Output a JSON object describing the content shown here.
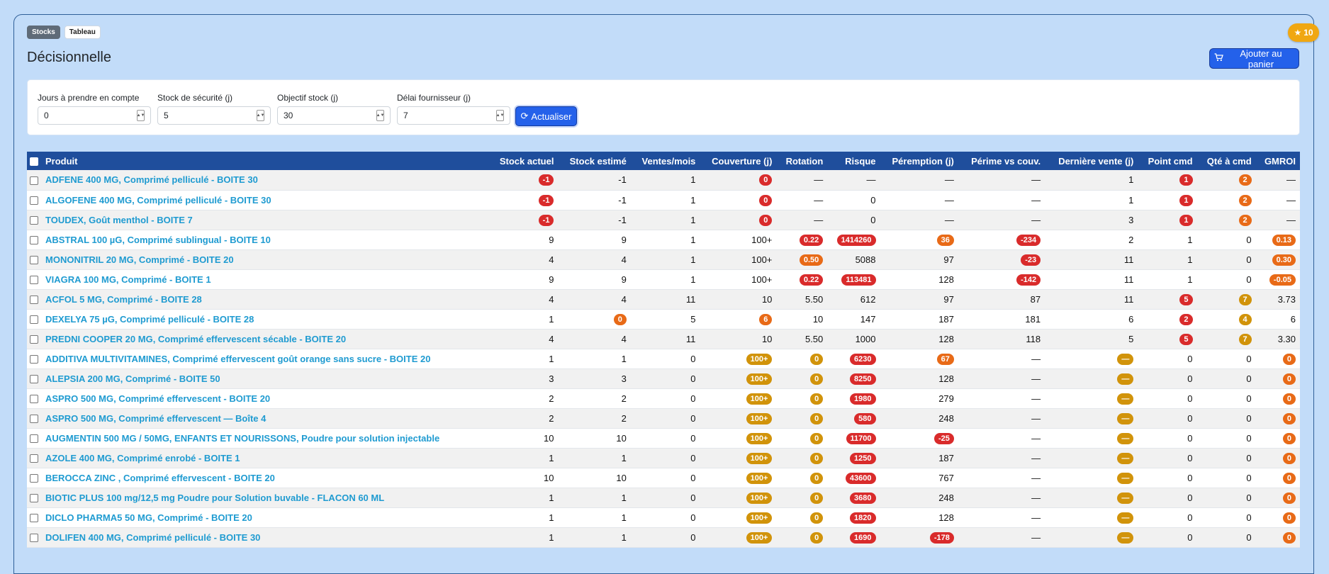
{
  "badge": {
    "icon": "star-icon",
    "count": "10"
  },
  "breadcrumbs": [
    "Stocks",
    "Tableau"
  ],
  "page": {
    "title": "Décisionnelle",
    "cart_button": "Ajouter au panier"
  },
  "filters": [
    {
      "label": "Jours à prendre en compte",
      "value": "0"
    },
    {
      "label": "Stock de sécurité (j)",
      "value": "5"
    },
    {
      "label": "Objectif stock (j)",
      "value": "30"
    },
    {
      "label": "Délai fournisseur (j)",
      "value": "7"
    }
  ],
  "refresh_button": "Actualiser",
  "colors": {
    "red": "#d92b2b",
    "orange": "#e86a17",
    "amber": "#d1930a",
    "header": "#1f4e9c",
    "link": "#1f9bd1"
  },
  "table": {
    "columns": [
      "Produit",
      "Stock actuel",
      "Stock estimé",
      "Ventes/mois",
      "Couverture (j)",
      "Rotation",
      "Risque",
      "Péremption (j)",
      "Périme vs couv.",
      "Dernière vente (j)",
      "Point cmd",
      "Qté à cmd",
      "GMROI"
    ],
    "rows": [
      {
        "name": "ADFENE 400 MG, Comprimé pelliculé - BOITE 30",
        "cells": [
          {
            "t": "-1",
            "c": "red"
          },
          {
            "t": "-1"
          },
          {
            "t": "1"
          },
          {
            "t": "0",
            "c": "red"
          },
          {
            "t": "—"
          },
          {
            "t": "—"
          },
          {
            "t": "—"
          },
          {
            "t": "—"
          },
          {
            "t": "1"
          },
          {
            "t": "1",
            "c": "red"
          },
          {
            "t": "2",
            "c": "orange"
          },
          {
            "t": "—"
          }
        ]
      },
      {
        "name": "ALGOFENE 400 MG, Comprimé pelliculé - BOITE 30",
        "cells": [
          {
            "t": "-1",
            "c": "red"
          },
          {
            "t": "-1"
          },
          {
            "t": "1"
          },
          {
            "t": "0",
            "c": "red"
          },
          {
            "t": "—"
          },
          {
            "t": "0"
          },
          {
            "t": "—"
          },
          {
            "t": "—"
          },
          {
            "t": "1"
          },
          {
            "t": "1",
            "c": "red"
          },
          {
            "t": "2",
            "c": "orange"
          },
          {
            "t": "—"
          }
        ]
      },
      {
        "name": "TOUDEX, Goût menthol - BOITE 7",
        "cells": [
          {
            "t": "-1",
            "c": "red"
          },
          {
            "t": "-1"
          },
          {
            "t": "1"
          },
          {
            "t": "0",
            "c": "red"
          },
          {
            "t": "—"
          },
          {
            "t": "0"
          },
          {
            "t": "—"
          },
          {
            "t": "—"
          },
          {
            "t": "3"
          },
          {
            "t": "1",
            "c": "red"
          },
          {
            "t": "2",
            "c": "orange"
          },
          {
            "t": "—"
          }
        ]
      },
      {
        "name": "ABSTRAL 100 µG, Comprimé sublingual - BOITE 10",
        "cells": [
          {
            "t": "9"
          },
          {
            "t": "9"
          },
          {
            "t": "1"
          },
          {
            "t": "100+"
          },
          {
            "t": "0.22",
            "c": "red"
          },
          {
            "t": "1414260",
            "c": "red"
          },
          {
            "t": "36",
            "c": "orange"
          },
          {
            "t": "-234",
            "c": "red"
          },
          {
            "t": "2"
          },
          {
            "t": "1"
          },
          {
            "t": "0"
          },
          {
            "t": "0.13",
            "c": "orange"
          }
        ]
      },
      {
        "name": "MONONITRIL 20 MG, Comprimé - BOITE 20",
        "cells": [
          {
            "t": "4"
          },
          {
            "t": "4"
          },
          {
            "t": "1"
          },
          {
            "t": "100+"
          },
          {
            "t": "0.50",
            "c": "orange"
          },
          {
            "t": "5088"
          },
          {
            "t": "97"
          },
          {
            "t": "-23",
            "c": "red"
          },
          {
            "t": "11"
          },
          {
            "t": "1"
          },
          {
            "t": "0"
          },
          {
            "t": "0.30",
            "c": "orange"
          }
        ]
      },
      {
        "name": "VIAGRA 100 MG, Comprimé - BOITE 1",
        "cells": [
          {
            "t": "9"
          },
          {
            "t": "9"
          },
          {
            "t": "1"
          },
          {
            "t": "100+"
          },
          {
            "t": "0.22",
            "c": "red"
          },
          {
            "t": "113481",
            "c": "red"
          },
          {
            "t": "128"
          },
          {
            "t": "-142",
            "c": "red"
          },
          {
            "t": "11"
          },
          {
            "t": "1"
          },
          {
            "t": "0"
          },
          {
            "t": "-0.05",
            "c": "orange"
          }
        ]
      },
      {
        "name": "ACFOL 5 MG, Comprimé - BOITE 28",
        "cells": [
          {
            "t": "4"
          },
          {
            "t": "4"
          },
          {
            "t": "11"
          },
          {
            "t": "10"
          },
          {
            "t": "5.50"
          },
          {
            "t": "612"
          },
          {
            "t": "97"
          },
          {
            "t": "87"
          },
          {
            "t": "11"
          },
          {
            "t": "5",
            "c": "red"
          },
          {
            "t": "7",
            "c": "amber"
          },
          {
            "t": "3.73"
          }
        ]
      },
      {
        "name": "DEXELYA 75 µG, Comprimé pelliculé - BOITE 28",
        "cells": [
          {
            "t": "1"
          },
          {
            "t": "0",
            "c": "orange"
          },
          {
            "t": "5"
          },
          {
            "t": "6",
            "c": "orange"
          },
          {
            "t": "10"
          },
          {
            "t": "147"
          },
          {
            "t": "187"
          },
          {
            "t": "181"
          },
          {
            "t": "6"
          },
          {
            "t": "2",
            "c": "red"
          },
          {
            "t": "4",
            "c": "amber"
          },
          {
            "t": "6"
          }
        ]
      },
      {
        "name": "PREDNI COOPER 20 MG, Comprimé effervescent sécable - BOITE 20",
        "cells": [
          {
            "t": "4"
          },
          {
            "t": "4"
          },
          {
            "t": "11"
          },
          {
            "t": "10"
          },
          {
            "t": "5.50"
          },
          {
            "t": "1000"
          },
          {
            "t": "128"
          },
          {
            "t": "118"
          },
          {
            "t": "5"
          },
          {
            "t": "5",
            "c": "red"
          },
          {
            "t": "7",
            "c": "amber"
          },
          {
            "t": "3.30"
          }
        ]
      },
      {
        "name": "ADDITIVA MULTIVITAMINES, Comprimé effervescent goût orange sans sucre - BOITE 20",
        "cells": [
          {
            "t": "1"
          },
          {
            "t": "1"
          },
          {
            "t": "0"
          },
          {
            "t": "100+",
            "c": "amber"
          },
          {
            "t": "0",
            "c": "amber"
          },
          {
            "t": "6230",
            "c": "red"
          },
          {
            "t": "67",
            "c": "orange"
          },
          {
            "t": "—"
          },
          {
            "t": "—",
            "c": "amber"
          },
          {
            "t": "0"
          },
          {
            "t": "0"
          },
          {
            "t": "0",
            "c": "orange"
          }
        ]
      },
      {
        "name": "ALEPSIA 200 MG, Comprimé - BOITE 50",
        "cells": [
          {
            "t": "3"
          },
          {
            "t": "3"
          },
          {
            "t": "0"
          },
          {
            "t": "100+",
            "c": "amber"
          },
          {
            "t": "0",
            "c": "amber"
          },
          {
            "t": "8250",
            "c": "red"
          },
          {
            "t": "128"
          },
          {
            "t": "—"
          },
          {
            "t": "—",
            "c": "amber"
          },
          {
            "t": "0"
          },
          {
            "t": "0"
          },
          {
            "t": "0",
            "c": "orange"
          }
        ]
      },
      {
        "name": "ASPRO 500 MG, Comprimé effervescent - BOITE 20",
        "cells": [
          {
            "t": "2"
          },
          {
            "t": "2"
          },
          {
            "t": "0"
          },
          {
            "t": "100+",
            "c": "amber"
          },
          {
            "t": "0",
            "c": "amber"
          },
          {
            "t": "1980",
            "c": "red"
          },
          {
            "t": "279"
          },
          {
            "t": "—"
          },
          {
            "t": "—",
            "c": "amber"
          },
          {
            "t": "0"
          },
          {
            "t": "0"
          },
          {
            "t": "0",
            "c": "orange"
          }
        ]
      },
      {
        "name": "ASPRO 500 MG, Comprimé effervescent — Boîte 4",
        "cells": [
          {
            "t": "2"
          },
          {
            "t": "2"
          },
          {
            "t": "0"
          },
          {
            "t": "100+",
            "c": "amber"
          },
          {
            "t": "0",
            "c": "amber"
          },
          {
            "t": "580",
            "c": "red"
          },
          {
            "t": "248"
          },
          {
            "t": "—"
          },
          {
            "t": "—",
            "c": "amber"
          },
          {
            "t": "0"
          },
          {
            "t": "0"
          },
          {
            "t": "0",
            "c": "orange"
          }
        ]
      },
      {
        "name": "AUGMENTIN 500 MG / 50MG, ENFANTS ET NOURISSONS, Poudre pour solution injectable",
        "cells": [
          {
            "t": "10"
          },
          {
            "t": "10"
          },
          {
            "t": "0"
          },
          {
            "t": "100+",
            "c": "amber"
          },
          {
            "t": "0",
            "c": "amber"
          },
          {
            "t": "11700",
            "c": "red"
          },
          {
            "t": "-25",
            "c": "red"
          },
          {
            "t": "—"
          },
          {
            "t": "—",
            "c": "amber"
          },
          {
            "t": "0"
          },
          {
            "t": "0"
          },
          {
            "t": "0",
            "c": "orange"
          }
        ]
      },
      {
        "name": "AZOLE 400 MG, Comprimé enrobé - BOITE 1",
        "cells": [
          {
            "t": "1"
          },
          {
            "t": "1"
          },
          {
            "t": "0"
          },
          {
            "t": "100+",
            "c": "amber"
          },
          {
            "t": "0",
            "c": "amber"
          },
          {
            "t": "1250",
            "c": "red"
          },
          {
            "t": "187"
          },
          {
            "t": "—"
          },
          {
            "t": "—",
            "c": "amber"
          },
          {
            "t": "0"
          },
          {
            "t": "0"
          },
          {
            "t": "0",
            "c": "orange"
          }
        ]
      },
      {
        "name": "BEROCCA ZINC , Comprimé effervescent - BOITE 20",
        "cells": [
          {
            "t": "10"
          },
          {
            "t": "10"
          },
          {
            "t": "0"
          },
          {
            "t": "100+",
            "c": "amber"
          },
          {
            "t": "0",
            "c": "amber"
          },
          {
            "t": "43600",
            "c": "red"
          },
          {
            "t": "767"
          },
          {
            "t": "—"
          },
          {
            "t": "—",
            "c": "amber"
          },
          {
            "t": "0"
          },
          {
            "t": "0"
          },
          {
            "t": "0",
            "c": "orange"
          }
        ]
      },
      {
        "name": "BIOTIC PLUS 100 mg/12,5 mg Poudre pour Solution buvable - FLACON 60 ML",
        "cells": [
          {
            "t": "1"
          },
          {
            "t": "1"
          },
          {
            "t": "0"
          },
          {
            "t": "100+",
            "c": "amber"
          },
          {
            "t": "0",
            "c": "amber"
          },
          {
            "t": "3680",
            "c": "red"
          },
          {
            "t": "248"
          },
          {
            "t": "—"
          },
          {
            "t": "—",
            "c": "amber"
          },
          {
            "t": "0"
          },
          {
            "t": "0"
          },
          {
            "t": "0",
            "c": "orange"
          }
        ]
      },
      {
        "name": "DICLO PHARMA5 50 MG, Comprimé - BOITE 20",
        "cells": [
          {
            "t": "1"
          },
          {
            "t": "1"
          },
          {
            "t": "0"
          },
          {
            "t": "100+",
            "c": "amber"
          },
          {
            "t": "0",
            "c": "amber"
          },
          {
            "t": "1820",
            "c": "red"
          },
          {
            "t": "128"
          },
          {
            "t": "—"
          },
          {
            "t": "—",
            "c": "amber"
          },
          {
            "t": "0"
          },
          {
            "t": "0"
          },
          {
            "t": "0",
            "c": "orange"
          }
        ]
      },
      {
        "name": "DOLIFEN 400 MG, Comprimé pelliculé - BOITE 30",
        "cells": [
          {
            "t": "1"
          },
          {
            "t": "1"
          },
          {
            "t": "0"
          },
          {
            "t": "100+",
            "c": "amber"
          },
          {
            "t": "0",
            "c": "amber"
          },
          {
            "t": "1690",
            "c": "red"
          },
          {
            "t": "-178",
            "c": "red"
          },
          {
            "t": "—"
          },
          {
            "t": "—",
            "c": "amber"
          },
          {
            "t": "0"
          },
          {
            "t": "0"
          },
          {
            "t": "0",
            "c": "orange"
          }
        ]
      }
    ]
  }
}
